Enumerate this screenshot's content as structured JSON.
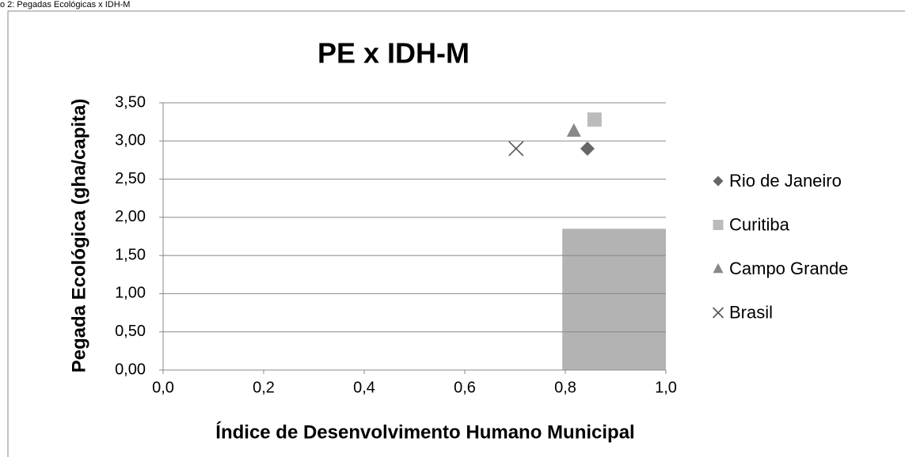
{
  "caption": "o 2: Pegadas Ecológicas x IDH-M",
  "chart_data": {
    "type": "scatter",
    "title": "PE x IDH-M",
    "x_label": "Índice de Desenvolvimento Humano Municipal",
    "y_label": "Pegada Ecológica  (gha/capita)",
    "xlim": [
      0,
      1
    ],
    "ylim": [
      0,
      3.5
    ],
    "xticks": [
      {
        "value": 0,
        "label": "0,0"
      },
      {
        "value": 0.2,
        "label": "0,2"
      },
      {
        "value": 0.4,
        "label": "0,4"
      },
      {
        "value": 0.6,
        "label": "0,6"
      },
      {
        "value": 0.8,
        "label": "0,8"
      },
      {
        "value": 1,
        "label": "1,0"
      }
    ],
    "yticks": [
      {
        "value": 0,
        "label": "0,00"
      },
      {
        "value": 0.5,
        "label": "0,50"
      },
      {
        "value": 1,
        "label": "1,00"
      },
      {
        "value": 1.5,
        "label": "1,50"
      },
      {
        "value": 2,
        "label": "2,00"
      },
      {
        "value": 2.5,
        "label": "2,50"
      },
      {
        "value": 3,
        "label": "3,00"
      },
      {
        "value": 3.5,
        "label": "3,50"
      }
    ],
    "grid": true,
    "legend": "right",
    "shaded_region": {
      "x": [
        0.794,
        1
      ],
      "y": [
        0,
        1.85
      ],
      "color": "#b3b3b3"
    },
    "series": [
      {
        "name": "Rio de Janeiro",
        "marker": "diamond",
        "color": "#666666",
        "x": [
          0.844
        ],
        "values": [
          2.9
        ]
      },
      {
        "name": "Curitiba",
        "marker": "square",
        "color": "#bbbbbb",
        "x": [
          0.858
        ],
        "values": [
          3.28
        ]
      },
      {
        "name": "Campo Grande",
        "marker": "triangle",
        "color": "#888888",
        "x": [
          0.817
        ],
        "values": [
          3.13
        ]
      },
      {
        "name": "Brasil",
        "marker": "x",
        "color": "#555555",
        "x": [
          0.702
        ],
        "values": [
          2.9
        ]
      }
    ]
  }
}
